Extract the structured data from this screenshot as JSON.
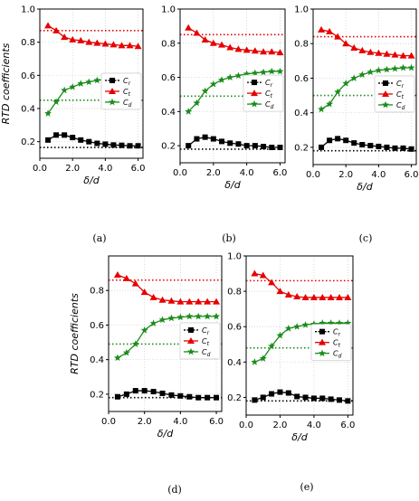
{
  "figure": {
    "ylabel": "RTD coefficients",
    "xlabel": "δ/d"
  },
  "colors": {
    "Cr": "#000000",
    "Ct": "#e60000",
    "Cd": "#1a8c1a",
    "grid": "#cccccc"
  },
  "chart_data": [
    {
      "type": "line",
      "caption": "(a)",
      "xlabel": "δ/d",
      "ylabel": "RTD coefficients",
      "xlim": [
        0,
        6.3
      ],
      "ylim": [
        0.1,
        1.0
      ],
      "xticks": [
        "0.0",
        "2.0",
        "4.0",
        "6.0"
      ],
      "yticks": [
        "0.2",
        "0.4",
        "0.6",
        "0.8",
        "1.0"
      ],
      "grid": true,
      "legend": "center-right",
      "x": [
        0.5,
        1.0,
        1.5,
        2.0,
        2.5,
        3.0,
        3.5,
        4.0,
        4.5,
        5.0,
        5.5,
        6.0
      ],
      "series": [
        {
          "name": "Cr",
          "marker": "square",
          "values": [
            0.21,
            0.24,
            0.24,
            0.225,
            0.21,
            0.2,
            0.19,
            0.185,
            0.18,
            0.178,
            0.175,
            0.175
          ]
        },
        {
          "name": "Ct",
          "marker": "triangle",
          "values": [
            0.9,
            0.87,
            0.83,
            0.815,
            0.81,
            0.8,
            0.795,
            0.79,
            0.785,
            0.78,
            0.78,
            0.775
          ]
        },
        {
          "name": "Cd",
          "marker": "star",
          "values": [
            0.37,
            0.44,
            0.51,
            0.53,
            0.55,
            0.56,
            0.57,
            0.575,
            0.58,
            0.585,
            0.59,
            0.595
          ]
        }
      ],
      "reference_lines": [
        {
          "series": "Cr",
          "style": "dotted",
          "value": 0.165
        },
        {
          "series": "Ct",
          "style": "dotted",
          "value": 0.87
        },
        {
          "series": "Cd",
          "style": "dotted",
          "value": 0.45
        }
      ]
    },
    {
      "type": "line",
      "caption": "(b)",
      "xlabel": "δ/d",
      "ylabel": "",
      "xlim": [
        0,
        6.3
      ],
      "ylim": [
        0.1,
        1.0
      ],
      "xticks": [
        "0.0",
        "2.0",
        "4.0",
        "6.0"
      ],
      "yticks": [
        "0.2",
        "0.4",
        "0.6",
        "0.8",
        "1.0"
      ],
      "grid": true,
      "legend": "center-right",
      "x": [
        0.5,
        1.0,
        1.5,
        2.0,
        2.5,
        3.0,
        3.5,
        4.0,
        4.5,
        5.0,
        5.5,
        6.0
      ],
      "series": [
        {
          "name": "Cr",
          "marker": "square",
          "values": [
            0.2,
            0.24,
            0.25,
            0.24,
            0.225,
            0.215,
            0.21,
            0.2,
            0.2,
            0.195,
            0.19,
            0.19
          ]
        },
        {
          "name": "Ct",
          "marker": "triangle",
          "values": [
            0.89,
            0.86,
            0.82,
            0.8,
            0.79,
            0.775,
            0.765,
            0.76,
            0.755,
            0.75,
            0.75,
            0.745
          ]
        },
        {
          "name": "Cd",
          "marker": "star",
          "values": [
            0.4,
            0.45,
            0.52,
            0.56,
            0.585,
            0.6,
            0.61,
            0.62,
            0.625,
            0.63,
            0.635,
            0.635
          ]
        }
      ],
      "reference_lines": [
        {
          "series": "Cr",
          "style": "dotted",
          "value": 0.18
        },
        {
          "series": "Ct",
          "style": "dotted",
          "value": 0.85
        },
        {
          "series": "Cd",
          "style": "dotted",
          "value": 0.49
        }
      ]
    },
    {
      "type": "line",
      "caption": "(c)",
      "xlabel": "δ/d",
      "ylabel": "",
      "xlim": [
        0,
        6.3
      ],
      "ylim": [
        0.1,
        1.0
      ],
      "xticks": [
        "0.0",
        "2.0",
        "4.0",
        "6.0"
      ],
      "yticks": [
        "0.2",
        "0.4",
        "0.6",
        "0.8",
        "1.0"
      ],
      "grid": true,
      "legend": "center-right",
      "x": [
        0.5,
        1.0,
        1.5,
        2.0,
        2.5,
        3.0,
        3.5,
        4.0,
        4.5,
        5.0,
        5.5,
        6.0
      ],
      "series": [
        {
          "name": "Cr",
          "marker": "square",
          "values": [
            0.2,
            0.24,
            0.25,
            0.24,
            0.225,
            0.215,
            0.21,
            0.205,
            0.2,
            0.195,
            0.195,
            0.19
          ]
        },
        {
          "name": "Ct",
          "marker": "triangle",
          "values": [
            0.88,
            0.87,
            0.84,
            0.8,
            0.775,
            0.76,
            0.75,
            0.745,
            0.74,
            0.735,
            0.73,
            0.73
          ]
        },
        {
          "name": "Cd",
          "marker": "star",
          "values": [
            0.42,
            0.45,
            0.52,
            0.57,
            0.6,
            0.62,
            0.635,
            0.645,
            0.65,
            0.655,
            0.66,
            0.66
          ]
        }
      ],
      "reference_lines": [
        {
          "series": "Cr",
          "style": "dotted",
          "value": 0.18
        },
        {
          "series": "Ct",
          "style": "dotted",
          "value": 0.84
        },
        {
          "series": "Cd",
          "style": "dotted",
          "value": 0.5
        }
      ]
    },
    {
      "type": "line",
      "caption": "(d)",
      "xlabel": "δ/d",
      "ylabel": "RTD coefficients",
      "xlim": [
        0,
        6.3
      ],
      "ylim": [
        0.1,
        1.0
      ],
      "xticks": [
        "0.0",
        "2.0",
        "4.0",
        "6.0"
      ],
      "yticks": [
        "0.2",
        "0.4",
        "0.6",
        "0.8"
      ],
      "grid": true,
      "legend": "center-right",
      "x": [
        0.5,
        1.0,
        1.5,
        2.0,
        2.5,
        3.0,
        3.5,
        4.0,
        4.5,
        5.0,
        5.5,
        6.0
      ],
      "series": [
        {
          "name": "Cr",
          "marker": "square",
          "values": [
            0.185,
            0.2,
            0.22,
            0.22,
            0.215,
            0.205,
            0.195,
            0.19,
            0.185,
            0.18,
            0.18,
            0.18
          ]
        },
        {
          "name": "Ct",
          "marker": "triangle",
          "values": [
            0.89,
            0.87,
            0.84,
            0.79,
            0.76,
            0.745,
            0.74,
            0.735,
            0.735,
            0.735,
            0.735,
            0.735
          ]
        },
        {
          "name": "Cd",
          "marker": "star",
          "values": [
            0.41,
            0.44,
            0.49,
            0.57,
            0.61,
            0.63,
            0.64,
            0.645,
            0.65,
            0.65,
            0.65,
            0.65
          ]
        }
      ],
      "reference_lines": [
        {
          "series": "Cr",
          "style": "dotted",
          "value": 0.18
        },
        {
          "series": "Ct",
          "style": "dotted",
          "value": 0.86
        },
        {
          "series": "Cd",
          "style": "dotted",
          "value": 0.49
        }
      ]
    },
    {
      "type": "line",
      "caption": "(e)",
      "xlabel": "δ/d",
      "ylabel": "",
      "xlim": [
        0,
        6.3
      ],
      "ylim": [
        0.1,
        1.0
      ],
      "xticks": [
        "0.0",
        "2.0",
        "4.0",
        "6.0"
      ],
      "yticks": [
        "0.2",
        "0.4",
        "0.6",
        "0.8",
        "1.0"
      ],
      "grid": true,
      "legend": "center-right",
      "x": [
        0.5,
        1.0,
        1.5,
        2.0,
        2.5,
        3.0,
        3.5,
        4.0,
        4.5,
        5.0,
        5.5,
        6.0
      ],
      "series": [
        {
          "name": "Cr",
          "marker": "square",
          "values": [
            0.185,
            0.2,
            0.22,
            0.23,
            0.225,
            0.205,
            0.2,
            0.195,
            0.195,
            0.19,
            0.185,
            0.18
          ]
        },
        {
          "name": "Ct",
          "marker": "triangle",
          "values": [
            0.9,
            0.89,
            0.85,
            0.8,
            0.78,
            0.77,
            0.765,
            0.765,
            0.765,
            0.765,
            0.765,
            0.765
          ]
        },
        {
          "name": "Cd",
          "marker": "star",
          "values": [
            0.4,
            0.42,
            0.49,
            0.55,
            0.59,
            0.6,
            0.61,
            0.615,
            0.62,
            0.62,
            0.62,
            0.62
          ]
        }
      ],
      "reference_lines": [
        {
          "series": "Cr",
          "style": "dotted",
          "value": 0.18
        },
        {
          "series": "Ct",
          "style": "dotted",
          "value": 0.86
        },
        {
          "series": "Cd",
          "style": "dotted",
          "value": 0.48
        }
      ]
    }
  ]
}
